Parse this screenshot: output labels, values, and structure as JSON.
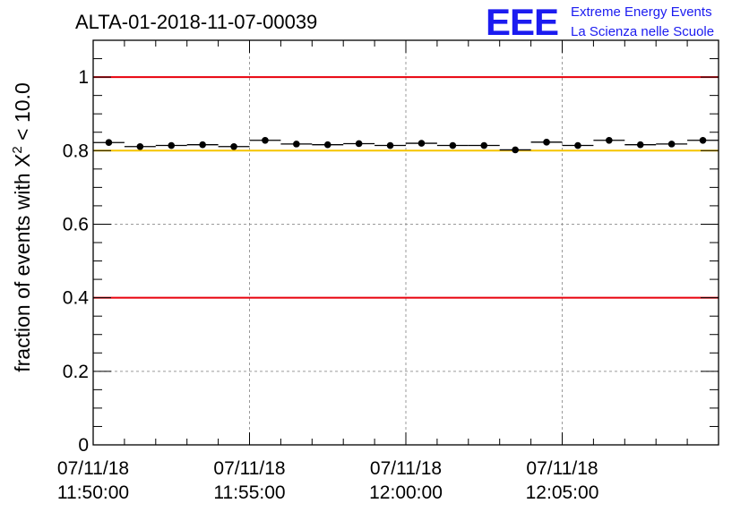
{
  "chart_data": {
    "type": "scatter",
    "title": "ALTA-01-2018-11-07-00039",
    "ylabel": "fraction of events with X² < 10.0",
    "ylabel_parts": {
      "prefix": "fraction of events with X",
      "superscript": "2",
      "suffix": " < 10.0"
    },
    "xlabel": "",
    "ylim": [
      0,
      1.1
    ],
    "xlim_minutes": [
      0,
      20
    ],
    "y_ticks": [
      "0",
      "0.2",
      "0.4",
      "0.6",
      "0.8",
      "1"
    ],
    "y_tick_values": [
      0,
      0.2,
      0.4,
      0.6,
      0.8,
      1.0
    ],
    "x_ticks": [
      {
        "minute": 0,
        "date": "07/11/18",
        "time": "11:50:00"
      },
      {
        "minute": 5,
        "date": "07/11/18",
        "time": "11:55:00"
      },
      {
        "minute": 10,
        "date": "07/11/18",
        "time": "12:00:00"
      },
      {
        "minute": 15,
        "date": "07/11/18",
        "time": "12:05:00"
      }
    ],
    "grid": true,
    "bin_width_minutes": 1.0,
    "series": [
      {
        "name": "fraction",
        "x": [
          0.5,
          1.5,
          2.5,
          3.5,
          4.5,
          5.5,
          6.5,
          7.5,
          8.5,
          9.5,
          10.5,
          11.5,
          12.5,
          13.5,
          14.5,
          15.5,
          16.5,
          17.5,
          18.5,
          19.5
        ],
        "y": [
          0.822,
          0.811,
          0.814,
          0.816,
          0.811,
          0.828,
          0.818,
          0.816,
          0.819,
          0.814,
          0.82,
          0.814,
          0.814,
          0.802,
          0.823,
          0.814,
          0.828,
          0.816,
          0.818,
          0.828
        ]
      }
    ],
    "reference_lines": [
      {
        "y": 1.0,
        "color": "#e8000b"
      },
      {
        "y": 0.8,
        "color": "#f5c400"
      },
      {
        "y": 0.4,
        "color": "#e8000b"
      }
    ]
  },
  "logo": {
    "mark": "EEE",
    "line1": "Extreme Energy Events",
    "line2": "La Scienza nelle Scuole"
  },
  "colors": {
    "marker": "#000000",
    "grid": "#9a9a9a",
    "logo": "#1b1bf0"
  }
}
